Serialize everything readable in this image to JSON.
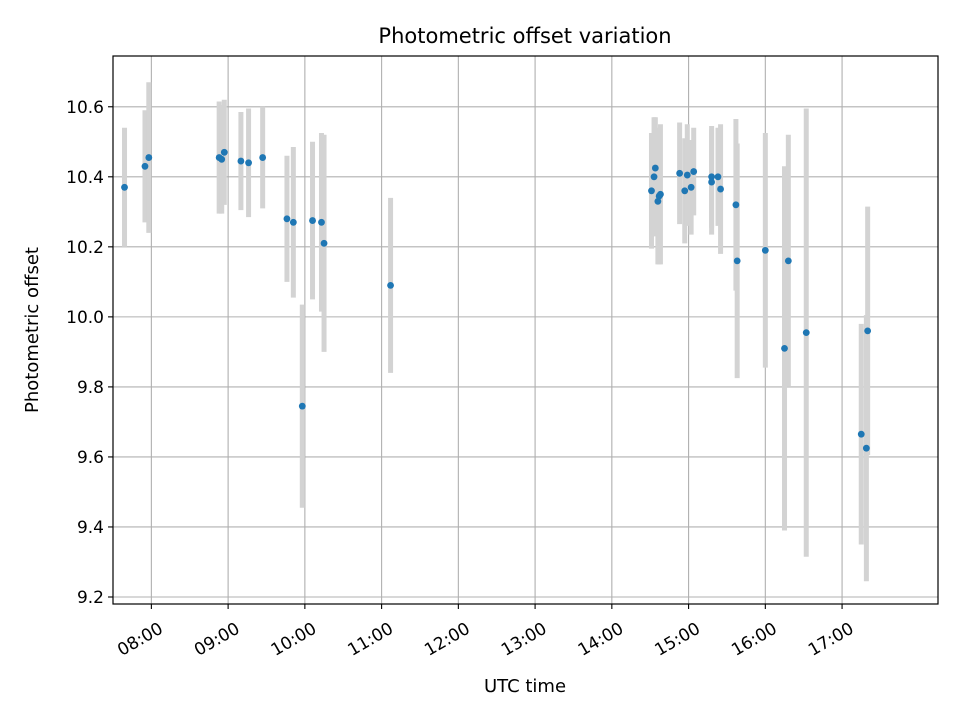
{
  "chart_data": {
    "type": "scatter",
    "title": "Photometric offset variation",
    "xlabel": "UTC time",
    "ylabel": "Photometric offset",
    "grid": true,
    "x_unit": "UTC hour",
    "xlim": [
      "07:30",
      "18:15"
    ],
    "ylim": [
      9.18,
      10.745
    ],
    "x_ticks": [
      "08:00",
      "09:00",
      "10:00",
      "11:00",
      "12:00",
      "13:00",
      "14:00",
      "15:00",
      "16:00",
      "17:00"
    ],
    "y_ticks": [
      "9.2",
      "9.4",
      "9.6",
      "9.8",
      "10.0",
      "10.2",
      "10.4",
      "10.6"
    ],
    "colors": {
      "points": "#1f77b4",
      "errorbars": "#d3d3d3",
      "grid": "#b0b0b0"
    },
    "series": [
      {
        "points": [
          {
            "x": "07:39",
            "y": 10.37,
            "err": 0.17
          },
          {
            "x": "07:55",
            "y": 10.43,
            "err": 0.16
          },
          {
            "x": "07:58",
            "y": 10.455,
            "err": 0.215
          },
          {
            "x": "08:53",
            "y": 10.455,
            "err": 0.16
          },
          {
            "x": "08:55",
            "y": 10.45,
            "err": 0.155
          },
          {
            "x": "08:57",
            "y": 10.47,
            "err": 0.15
          },
          {
            "x": "09:10",
            "y": 10.445,
            "err": 0.14
          },
          {
            "x": "09:16",
            "y": 10.44,
            "err": 0.155
          },
          {
            "x": "09:27",
            "y": 10.455,
            "err": 0.145
          },
          {
            "x": "09:46",
            "y": 10.28,
            "err": 0.18
          },
          {
            "x": "09:51",
            "y": 10.27,
            "err": 0.215
          },
          {
            "x": "09:58",
            "y": 9.745,
            "err": 0.29
          },
          {
            "x": "10:06",
            "y": 10.275,
            "err": 0.225
          },
          {
            "x": "10:13",
            "y": 10.27,
            "err": 0.255
          },
          {
            "x": "10:15",
            "y": 10.21,
            "err": 0.31
          },
          {
            "x": "11:07",
            "y": 10.09,
            "err": 0.25
          },
          {
            "x": "14:31",
            "y": 10.36,
            "err": 0.165
          },
          {
            "x": "14:33",
            "y": 10.4,
            "err": 0.17
          },
          {
            "x": "14:34",
            "y": 10.425,
            "err": 0.145
          },
          {
            "x": "14:36",
            "y": 10.33,
            "err": 0.18
          },
          {
            "x": "14:37",
            "y": 10.345,
            "err": 0.195
          },
          {
            "x": "14:38",
            "y": 10.35,
            "err": 0.2
          },
          {
            "x": "14:53",
            "y": 10.41,
            "err": 0.145
          },
          {
            "x": "14:57",
            "y": 10.36,
            "err": 0.15
          },
          {
            "x": "14:59",
            "y": 10.405,
            "err": 0.145
          },
          {
            "x": "15:02",
            "y": 10.37,
            "err": 0.135
          },
          {
            "x": "15:04",
            "y": 10.415,
            "err": 0.125
          },
          {
            "x": "15:18",
            "y": 10.4,
            "err": 0.145
          },
          {
            "x": "15:18",
            "y": 10.385,
            "err": 0.15
          },
          {
            "x": "15:23",
            "y": 10.4,
            "err": 0.14
          },
          {
            "x": "15:25",
            "y": 10.365,
            "err": 0.185
          },
          {
            "x": "15:37",
            "y": 10.32,
            "err": 0.245
          },
          {
            "x": "15:38",
            "y": 10.16,
            "err": 0.335
          },
          {
            "x": "16:00",
            "y": 10.19,
            "err": 0.335
          },
          {
            "x": "16:15",
            "y": 9.91,
            "err": 0.52
          },
          {
            "x": "16:18",
            "y": 10.16,
            "err": 0.36
          },
          {
            "x": "16:32",
            "y": 9.955,
            "err": 0.64
          },
          {
            "x": "17:15",
            "y": 9.665,
            "err": 0.315
          },
          {
            "x": "17:19",
            "y": 9.625,
            "err": 0.38
          },
          {
            "x": "17:20",
            "y": 9.96,
            "err": 0.355
          }
        ]
      }
    ]
  }
}
